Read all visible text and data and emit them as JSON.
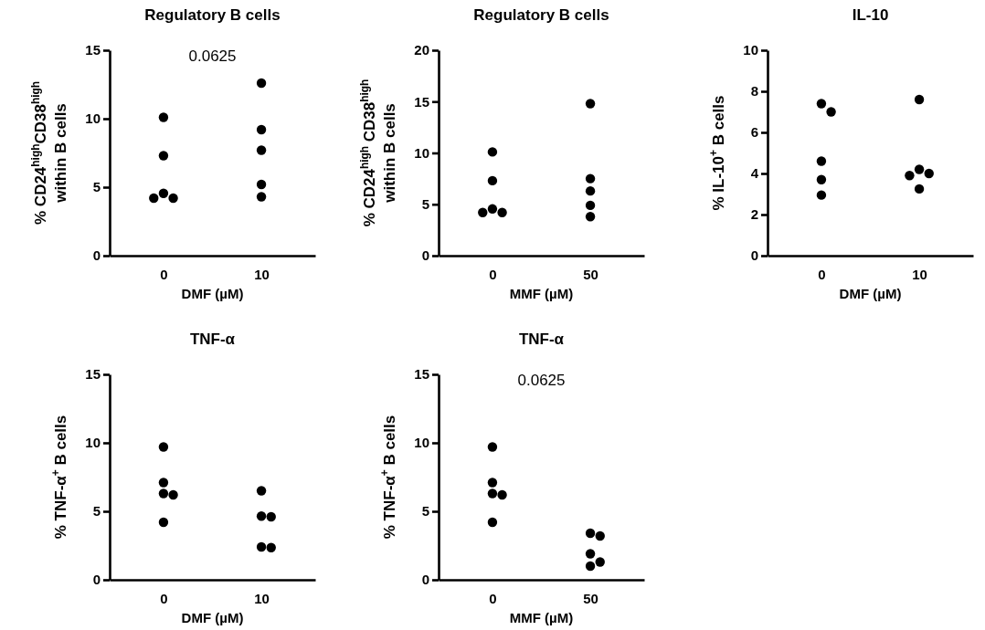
{
  "chart_data": [
    {
      "type": "scatter",
      "title": "Regulatory B cells",
      "xlabel": "DMF (µM)",
      "ylabel": "% CD24$^{high}$CD38$^{high}$\nwithin B cells",
      "categories": [
        "0",
        "10"
      ],
      "ylim": [
        0,
        15
      ],
      "yticks": [
        0,
        5,
        10,
        15
      ],
      "marker": "circle",
      "annotations": [
        "0.0625"
      ],
      "series": [
        {
          "color": "#000000",
          "x": [
            "0",
            "0",
            "0",
            "0",
            "0",
            "10",
            "10",
            "10",
            "10",
            "10"
          ],
          "values": [
            10.1,
            7.3,
            4.55,
            4.2,
            4.2,
            12.6,
            9.2,
            7.7,
            5.2,
            4.3
          ]
        }
      ]
    },
    {
      "type": "scatter",
      "title": "Regulatory B cells",
      "xlabel": "MMF (µM)",
      "ylabel": "% CD24$^{high}$ CD38$^{high}$\nwithin B cells",
      "categories": [
        "0",
        "50"
      ],
      "ylim": [
        0,
        20
      ],
      "yticks": [
        0,
        5,
        10,
        15,
        20
      ],
      "marker": "circle",
      "series": [
        {
          "color": "#000000",
          "x": [
            "0",
            "0",
            "0",
            "0",
            "0",
            "50",
            "50",
            "50",
            "50",
            "50"
          ],
          "values": [
            10.1,
            7.3,
            4.55,
            4.2,
            4.2,
            14.8,
            7.5,
            6.3,
            4.9,
            3.8
          ]
        }
      ]
    },
    {
      "type": "scatter",
      "title": "IL-10",
      "xlabel": "DMF (µM)",
      "ylabel": "% IL-10$^{+}$ B cells",
      "categories": [
        "0",
        "10"
      ],
      "ylim": [
        0,
        10
      ],
      "yticks": [
        0,
        2,
        4,
        6,
        8,
        10
      ],
      "marker": "circle",
      "series": [
        {
          "color": "#000000",
          "x": [
            "0",
            "0",
            "0",
            "0",
            "0",
            "10",
            "10",
            "10",
            "10",
            "10"
          ],
          "values": [
            7.4,
            7.0,
            4.6,
            3.7,
            2.95,
            7.6,
            4.2,
            4.0,
            3.9,
            3.25
          ]
        }
      ]
    },
    {
      "type": "scatter",
      "title": "TNF-α",
      "xlabel": "DMF (µM)",
      "ylabel": "% TNF-α$^{+}$ B cells",
      "categories": [
        "0",
        "10"
      ],
      "ylim": [
        0,
        15
      ],
      "yticks": [
        0,
        5,
        10,
        15
      ],
      "marker": "circle",
      "series": [
        {
          "color": "#000000",
          "x": [
            "0",
            "0",
            "0",
            "0",
            "0",
            "10",
            "10",
            "10",
            "10",
            "10"
          ],
          "values": [
            9.7,
            7.1,
            6.3,
            6.2,
            4.2,
            6.5,
            4.65,
            4.6,
            2.4,
            2.35
          ]
        }
      ]
    },
    {
      "type": "scatter",
      "title": "TNF-α",
      "xlabel": "MMF (µM)",
      "ylabel": "% TNF-α$^{+}$ B cells",
      "categories": [
        "0",
        "50"
      ],
      "ylim": [
        0,
        15
      ],
      "yticks": [
        0,
        5,
        10,
        15
      ],
      "marker": "circle",
      "annotations": [
        "0.0625"
      ],
      "series": [
        {
          "color": "#000000",
          "x": [
            "0",
            "0",
            "0",
            "0",
            "0",
            "50",
            "50",
            "50",
            "50",
            "50"
          ],
          "values": [
            9.7,
            7.1,
            6.3,
            6.2,
            4.2,
            3.4,
            3.2,
            1.9,
            1.3,
            1.0
          ]
        }
      ]
    }
  ]
}
